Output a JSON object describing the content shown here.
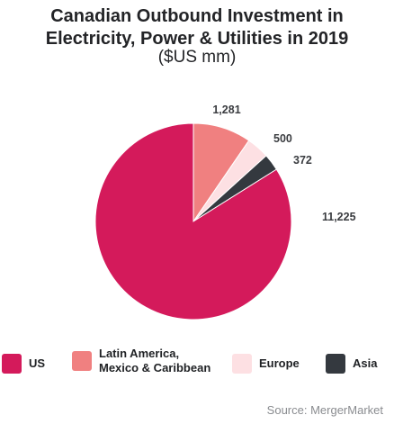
{
  "chart_data": {
    "type": "pie",
    "title_lines": [
      "Canadian Outbound Investment in",
      "Electricity, Power & Utilities in 2019"
    ],
    "subtitle": "($US mm)",
    "categories": [
      "US",
      "Latin America,\nMexico & Caribbean",
      "Europe",
      "Asia"
    ],
    "values": [
      11225,
      1281,
      500,
      372
    ],
    "value_labels": [
      "11,225",
      "1,281",
      "500",
      "372"
    ],
    "colors": [
      "#d41a5b",
      "#f08080",
      "#fde0e3",
      "#34393f"
    ],
    "legend_position": "bottom",
    "source": "Source: MergerMarket"
  }
}
